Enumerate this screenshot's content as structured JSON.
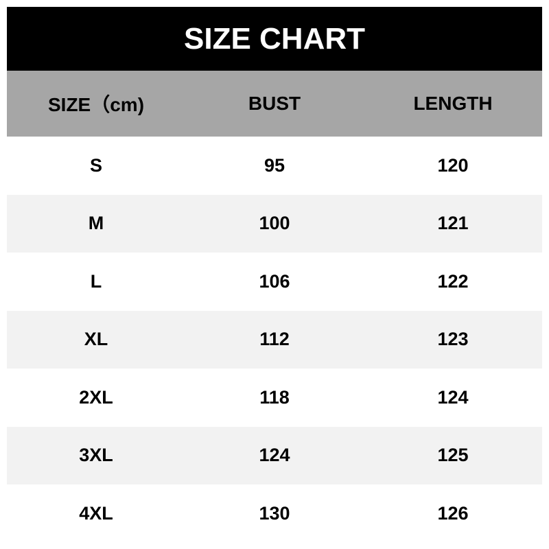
{
  "title": "SIZE CHART",
  "columns": [
    "SIZE（cm)",
    "BUST",
    "LENGTH"
  ],
  "rows": [
    [
      "S",
      "95",
      "120"
    ],
    [
      "M",
      "100",
      "121"
    ],
    [
      "L",
      "106",
      "122"
    ],
    [
      "XL",
      "112",
      "123"
    ],
    [
      "2XL",
      "118",
      "124"
    ],
    [
      "3XL",
      "124",
      "125"
    ],
    [
      "4XL",
      "130",
      "126"
    ]
  ],
  "colors": {
    "title_bg": "#000000",
    "header_bg": "#a6a6a6",
    "alt_row_bg": "#f2f2f2"
  }
}
